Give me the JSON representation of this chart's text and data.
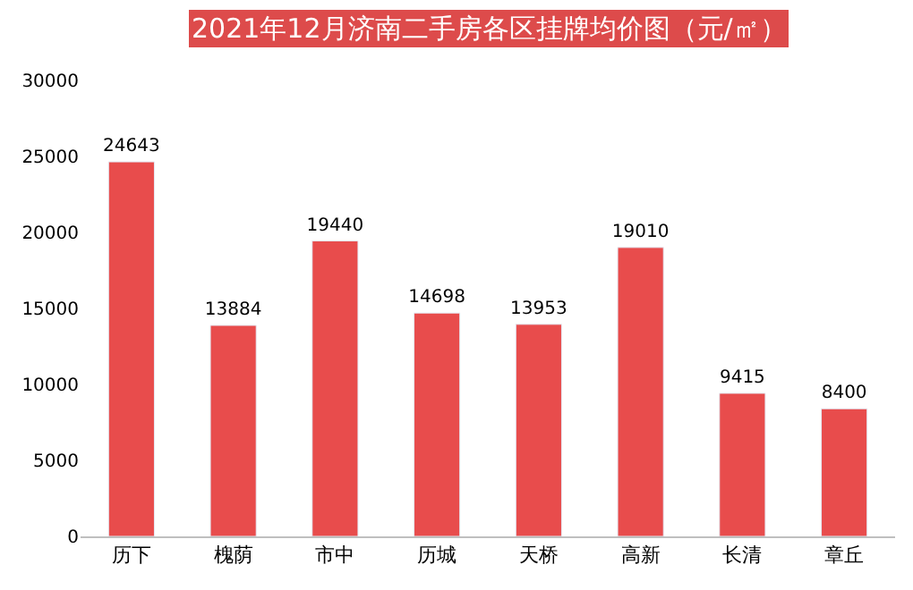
{
  "chart_data": {
    "type": "bar",
    "title": "2021年12月济南二手房各区挂牌均价图（元/㎡）",
    "categories": [
      "历下",
      "槐荫",
      "市中",
      "历城",
      "天桥",
      "高新",
      "长清",
      "章丘"
    ],
    "values": [
      24643,
      13884,
      19440,
      14698,
      13953,
      19010,
      9415,
      8400
    ],
    "color": "#e84c4c",
    "data_labels": true,
    "ylim": [
      0,
      30000
    ],
    "yticks": [
      0,
      5000,
      10000,
      15000,
      20000,
      25000,
      30000
    ]
  }
}
